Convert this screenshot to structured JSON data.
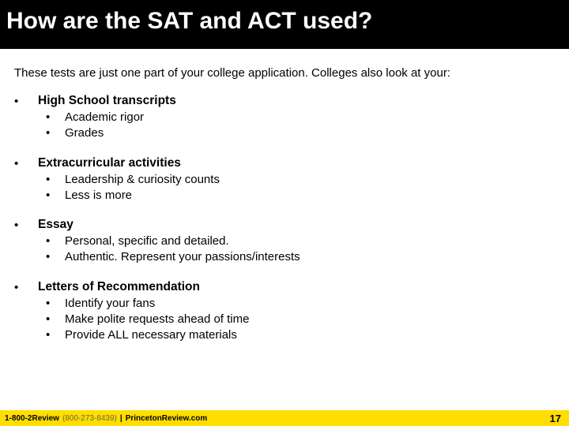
{
  "title": "How are the SAT and ACT used?",
  "intro": "These tests are just one part of your college application. Colleges also look at your:",
  "items": [
    {
      "heading": "High School transcripts",
      "subs": [
        "Academic rigor",
        "Grades"
      ]
    },
    {
      "heading": "Extracurricular activities",
      "subs": [
        "Leadership & curiosity counts",
        "Less is more"
      ]
    },
    {
      "heading": "Essay",
      "subs": [
        "Personal, specific and detailed.",
        "Authentic. Represent your passions/interests"
      ]
    },
    {
      "heading": "Letters of Recommendation",
      "subs": [
        "Identify your fans",
        "Make polite requests ahead of time",
        "Provide ALL necessary materials"
      ]
    }
  ],
  "footer": {
    "brand": "1-800-2Review",
    "phone": "(800-273-8439)",
    "site": "PrincetonReview.com",
    "page": "17"
  },
  "colors": {
    "title_bg": "#000000",
    "title_fg": "#ffffff",
    "body_bg": "#ffffff",
    "footer_bg": "#ffde00",
    "text": "#000000"
  }
}
